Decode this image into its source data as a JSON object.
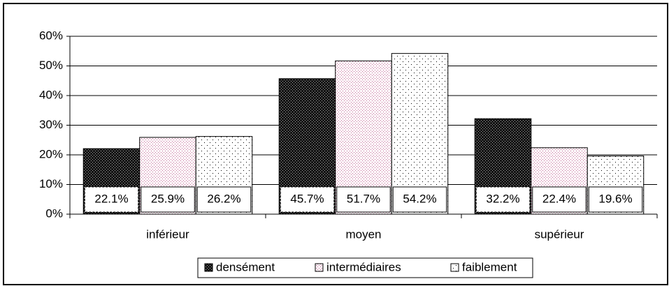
{
  "chart_data": {
    "type": "bar",
    "categories": [
      "inférieur",
      "moyen",
      "supérieur"
    ],
    "series": [
      {
        "name": "densément",
        "values": [
          22.1,
          45.7,
          32.2
        ],
        "value_labels": [
          "22.1%",
          "45.7%",
          "32.2%"
        ]
      },
      {
        "name": "intermédiaires",
        "values": [
          25.9,
          51.7,
          22.4
        ],
        "value_labels": [
          "25.9%",
          "51.7%",
          "22.4%"
        ]
      },
      {
        "name": "faiblement",
        "values": [
          26.2,
          54.2,
          19.6
        ],
        "value_labels": [
          "26.2%",
          "54.2%",
          "19.6%"
        ]
      }
    ],
    "ylim": [
      0,
      60
    ],
    "yticks": [
      {
        "value": 0,
        "label": "0%"
      },
      {
        "value": 10,
        "label": "10%"
      },
      {
        "value": 20,
        "label": "20%"
      },
      {
        "value": 30,
        "label": "30%"
      },
      {
        "value": 40,
        "label": "40%"
      },
      {
        "value": 50,
        "label": "50%"
      },
      {
        "value": 60,
        "label": "60%"
      }
    ],
    "grid": true,
    "legend": "bottom"
  }
}
